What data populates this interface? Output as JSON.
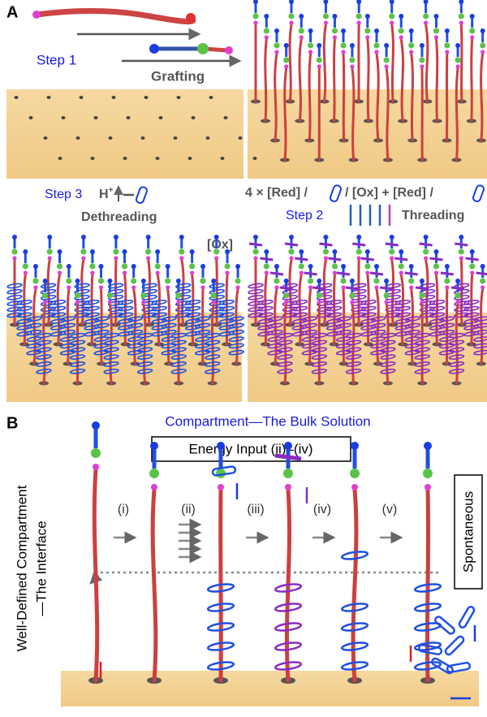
{
  "panel_a": {
    "label": "A",
    "step1": "Step 1",
    "grafting": "Grafting",
    "step3": "Step 3",
    "h": "H",
    "h_charge": "+",
    "dethreading": "Dethreading",
    "threading_formula_1": "4 × [Red] /",
    "threading_formula_2": "/ [Ox] + [Red] /",
    "step2": "Step 2",
    "threading": "Threading",
    "ox": "[Ox]"
  },
  "panel_b": {
    "label": "B",
    "bulk": "Compartment—The Bulk Solution",
    "energy_input": "Energy Input (ii)–(iv)",
    "steps": [
      "(i)",
      "(ii)",
      "(iii)",
      "(iv)",
      "(v)"
    ],
    "spontaneous": "Spontaneous",
    "interface_1": "Well-Defined Compartment",
    "interface_2": "—The Interface"
  }
}
